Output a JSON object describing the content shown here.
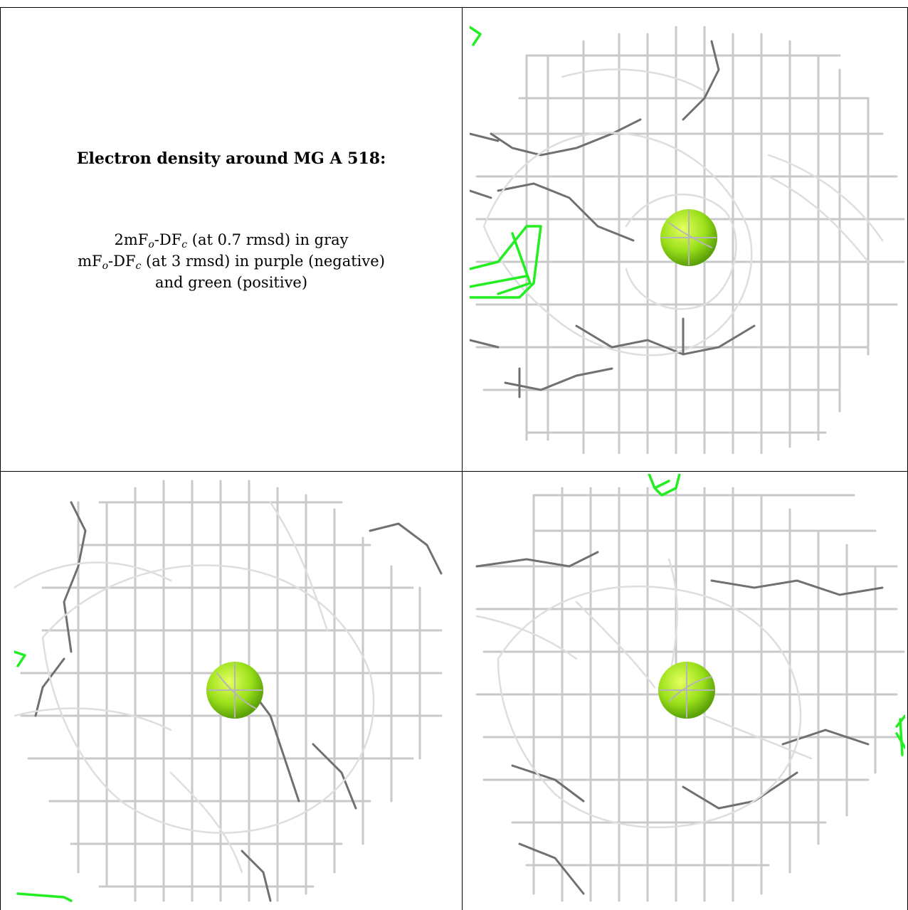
{
  "caption": {
    "title": "Electron density around MG A 518:",
    "line1_prefix": "2mF",
    "line1_sub1": "o",
    "line1_mid": "-DF",
    "line1_sub2": "c",
    "line1_rest": " (at 0.7 rmsd) in gray",
    "line2_prefix": "mF",
    "line2_sub1": "o",
    "line2_mid": "-DF",
    "line2_sub2": "c",
    "line2_rest": " (at 3 rmsd) in purple (negative)",
    "line3": "and green (positive)"
  },
  "colors": {
    "density_2fofc": "#c9c9c9",
    "density_positive": "#22ee22",
    "atom_mg": "#88dd11",
    "grid_rule": "#000000",
    "background": "#ffffff"
  },
  "views": [
    {
      "name": "view-top-right",
      "atom": "MG A 518"
    },
    {
      "name": "view-bottom-left",
      "atom": "MG A 518"
    },
    {
      "name": "view-bottom-right",
      "atom": "MG A 518"
    }
  ]
}
